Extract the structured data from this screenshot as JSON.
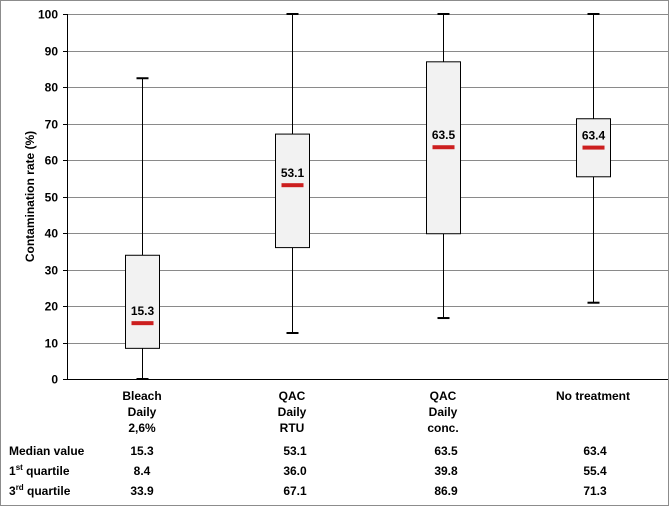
{
  "chart_data": {
    "type": "box",
    "ylabel": "Contamination rate (%)",
    "ylim": [
      0,
      100
    ],
    "yticks": [
      "0",
      "10",
      "20",
      "30",
      "40",
      "50",
      "60",
      "70",
      "80",
      "90",
      "100"
    ],
    "grid": true,
    "median_color": "#cc1f1f",
    "categories": [
      {
        "lines": [
          "Bleach",
          "Daily",
          "2,6%"
        ]
      },
      {
        "lines": [
          "QAC",
          "Daily",
          "RTU"
        ]
      },
      {
        "lines": [
          "QAC",
          "Daily",
          "conc."
        ]
      },
      {
        "lines": [
          "No treatment"
        ]
      }
    ],
    "boxes": [
      {
        "min": 0,
        "q1": 8.4,
        "median": 15.3,
        "q3": 33.9,
        "max": 82.4,
        "median_label": "15.3"
      },
      {
        "min": 12.6,
        "q1": 36.0,
        "median": 53.1,
        "q3": 67.1,
        "max": 100,
        "median_label": "53.1"
      },
      {
        "min": 16.7,
        "q1": 39.8,
        "median": 63.5,
        "q3": 86.9,
        "max": 100,
        "median_label": "63.5"
      },
      {
        "min": 20.9,
        "q1": 55.4,
        "median": 63.4,
        "q3": 71.3,
        "max": 100,
        "median_label": "63.4"
      }
    ]
  },
  "stats_table": {
    "rows": [
      {
        "label_main": "Median value",
        "label_sup": "",
        "label_rest": "",
        "values": [
          "15.3",
          "53.1",
          "63.5",
          "63.4"
        ]
      },
      {
        "label_main": "1",
        "label_sup": "st",
        "label_rest": " quartile",
        "values": [
          "8.4",
          "36.0",
          "39.8",
          "55.4"
        ]
      },
      {
        "label_main": "3",
        "label_sup": "rd",
        "label_rest": " quartile",
        "values": [
          "33.9",
          "67.1",
          "86.9",
          "71.3"
        ]
      }
    ]
  }
}
